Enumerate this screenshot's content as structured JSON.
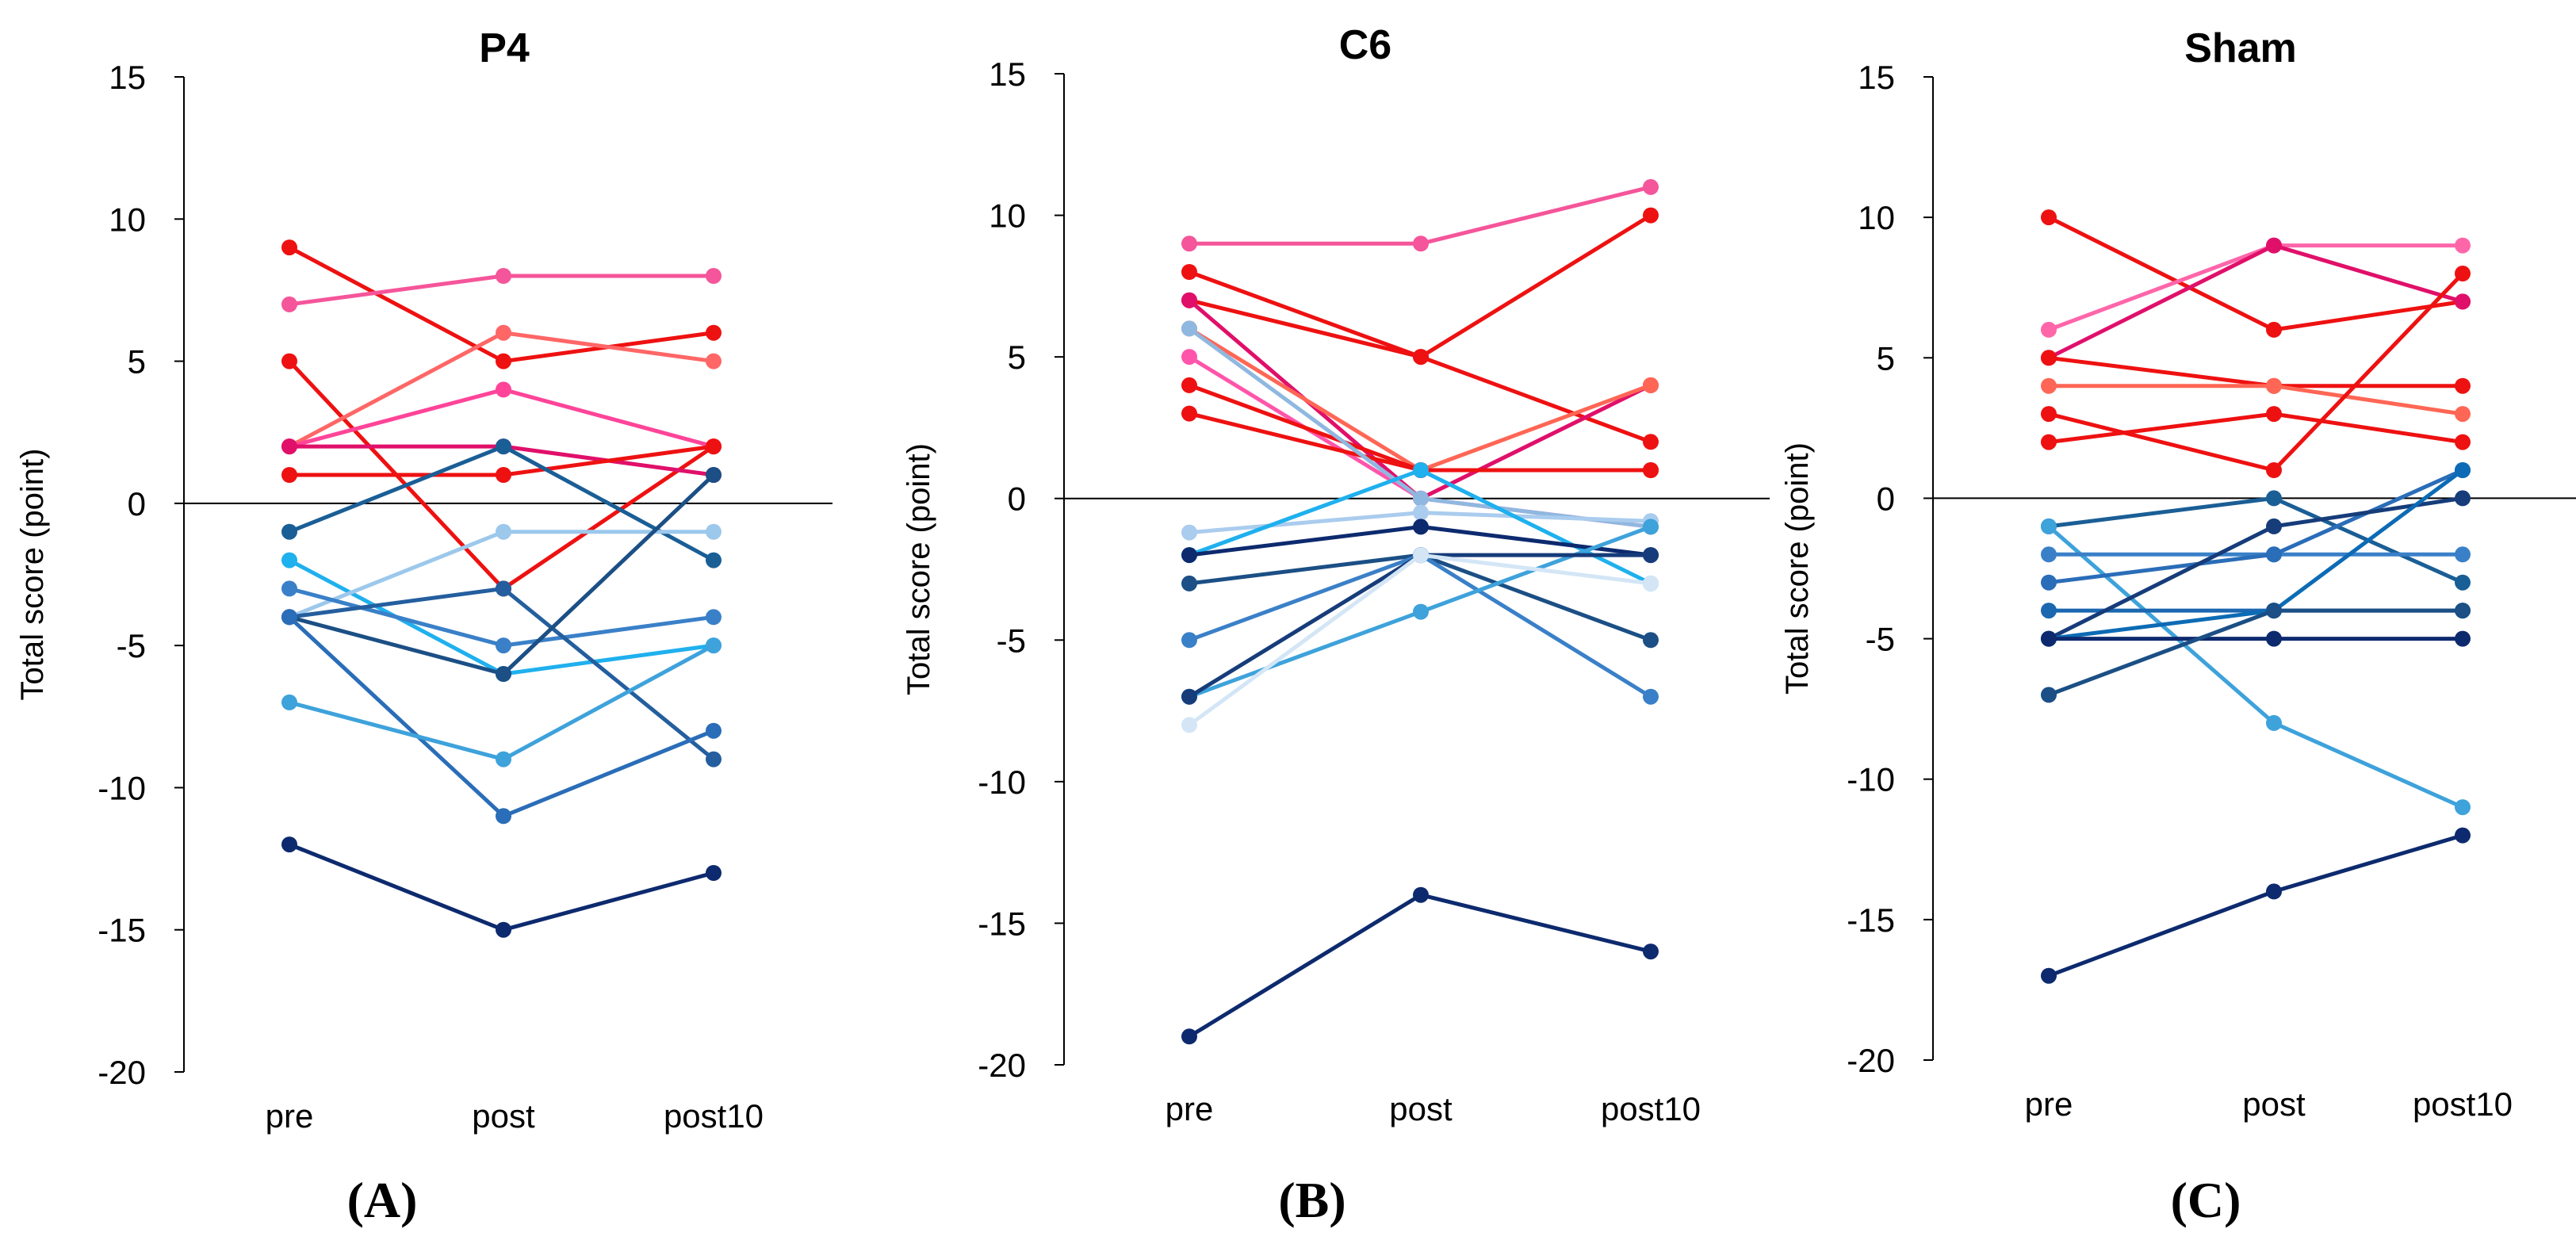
{
  "figure": {
    "panels": [
      {
        "title": "P4",
        "label": "(A)"
      },
      {
        "title": "C6",
        "label": "(B)"
      },
      {
        "title": "Sham",
        "label": "(C)"
      }
    ]
  },
  "chart_data": [
    {
      "type": "line",
      "title": "P4",
      "panel_label": "(A)",
      "xlabel": "",
      "ylabel": "Total score (point)",
      "categories": [
        "pre",
        "post",
        "post10"
      ],
      "ylim": [
        -20,
        15
      ],
      "yticks": [
        15,
        10,
        5,
        0,
        -5,
        -10,
        -15,
        -20
      ],
      "zero_line": true,
      "series": [
        {
          "color": "#ee1111",
          "values": [
            9,
            5,
            6
          ]
        },
        {
          "color": "#f5559a",
          "values": [
            7,
            8,
            8
          ]
        },
        {
          "color": "#ee1111",
          "values": [
            5,
            -3,
            2
          ]
        },
        {
          "color": "#ff6666",
          "values": [
            2,
            6,
            5
          ]
        },
        {
          "color": "#ff4499",
          "values": [
            2,
            4,
            2
          ]
        },
        {
          "color": "#e0106a",
          "values": [
            2,
            2,
            1
          ]
        },
        {
          "color": "#ee1111",
          "values": [
            1,
            1,
            2
          ]
        },
        {
          "color": "#1a5e96",
          "values": [
            -1,
            2,
            -2
          ]
        },
        {
          "color": "#1fb0ee",
          "values": [
            -2,
            -6,
            -5
          ]
        },
        {
          "color": "#9cc8ec",
          "values": [
            -4,
            -1,
            -1
          ]
        },
        {
          "color": "#3a80c8",
          "values": [
            -3,
            -5,
            -4
          ]
        },
        {
          "color": "#245e9e",
          "values": [
            -4,
            -3,
            -9
          ]
        },
        {
          "color": "#1b4f85",
          "values": [
            -4,
            -6,
            1
          ]
        },
        {
          "color": "#2a6db8",
          "values": [
            -4,
            -11,
            -8
          ]
        },
        {
          "color": "#3ea2db",
          "values": [
            -7,
            -9,
            -5
          ]
        },
        {
          "color": "#0d2a6e",
          "values": [
            -12,
            -15,
            -13
          ]
        }
      ]
    },
    {
      "type": "line",
      "title": "C6",
      "panel_label": "(B)",
      "xlabel": "",
      "ylabel": "Total score (point)",
      "categories": [
        "pre",
        "post",
        "post10"
      ],
      "ylim": [
        -20,
        15
      ],
      "yticks": [
        15,
        10,
        5,
        0,
        -5,
        -10,
        -15,
        -20
      ],
      "zero_line": true,
      "series": [
        {
          "color": "#f5559a",
          "values": [
            9,
            9,
            11
          ]
        },
        {
          "color": "#ee1111",
          "values": [
            8,
            5,
            2
          ]
        },
        {
          "color": "#ee1111",
          "values": [
            7,
            5,
            10
          ]
        },
        {
          "color": "#e0106a",
          "values": [
            7,
            0,
            4
          ]
        },
        {
          "color": "#ff6655",
          "values": [
            6,
            1,
            4
          ]
        },
        {
          "color": "#ff55aa",
          "values": [
            5,
            0,
            -1
          ]
        },
        {
          "color": "#ee1111",
          "values": [
            4,
            1,
            1
          ]
        },
        {
          "color": "#ee1111",
          "values": [
            3,
            1,
            1
          ]
        },
        {
          "color": "#8fb8e0",
          "values": [
            6,
            0,
            -1
          ]
        },
        {
          "color": "#aaccee",
          "values": [
            -1.2,
            -0.5,
            -0.8
          ]
        },
        {
          "color": "#1fb0ee",
          "values": [
            -2,
            1,
            -3
          ]
        },
        {
          "color": "#0d2a6e",
          "values": [
            -2,
            -1,
            -2
          ]
        },
        {
          "color": "#1b4f85",
          "values": [
            -3,
            -2,
            -5
          ]
        },
        {
          "color": "#3a80c8",
          "values": [
            -5,
            -2,
            -7
          ]
        },
        {
          "color": "#3ea2db",
          "values": [
            -7,
            -4,
            -1
          ]
        },
        {
          "color": "#163c7a",
          "values": [
            -7,
            -2,
            -2
          ]
        },
        {
          "color": "#d4e6f6",
          "values": [
            -8,
            -2,
            -3
          ]
        },
        {
          "color": "#0d2a6e",
          "values": [
            -19,
            -14,
            -16
          ]
        }
      ]
    },
    {
      "type": "line",
      "title": "Sham",
      "panel_label": "(C)",
      "xlabel": "",
      "ylabel": "Total score (point)",
      "categories": [
        "pre",
        "post",
        "post10"
      ],
      "ylim": [
        -20,
        15
      ],
      "yticks": [
        15,
        10,
        5,
        0,
        -5,
        -10,
        -15,
        -20
      ],
      "zero_line": true,
      "series": [
        {
          "color": "#ee1111",
          "values": [
            10,
            6,
            7
          ]
        },
        {
          "color": "#ff66aa",
          "values": [
            6,
            9,
            9
          ]
        },
        {
          "color": "#e0106a",
          "values": [
            5,
            9,
            7
          ]
        },
        {
          "color": "#ee1111",
          "values": [
            5,
            4,
            4
          ]
        },
        {
          "color": "#ff6655",
          "values": [
            4,
            4,
            3
          ]
        },
        {
          "color": "#ee1111",
          "values": [
            3,
            1,
            8
          ]
        },
        {
          "color": "#ee1111",
          "values": [
            2,
            3,
            2
          ]
        },
        {
          "color": "#1a5e96",
          "values": [
            -1,
            0,
            -3
          ]
        },
        {
          "color": "#3ea2db",
          "values": [
            -1,
            -8,
            -11
          ]
        },
        {
          "color": "#3a80c8",
          "values": [
            -2,
            -2,
            -2
          ]
        },
        {
          "color": "#2a6db8",
          "values": [
            -3,
            -2,
            1
          ]
        },
        {
          "color": "#1b67b0",
          "values": [
            -4,
            -4,
            -4
          ]
        },
        {
          "color": "#163c7a",
          "values": [
            -5,
            -1,
            0
          ]
        },
        {
          "color": "#0d6bb5",
          "values": [
            -5,
            -4,
            1
          ]
        },
        {
          "color": "#0d2a6e",
          "values": [
            -5,
            -5,
            -5
          ]
        },
        {
          "color": "#1b4f85",
          "values": [
            -7,
            -4,
            -4
          ]
        },
        {
          "color": "#0d2a6e",
          "values": [
            -17,
            -14,
            -12
          ]
        }
      ]
    }
  ]
}
